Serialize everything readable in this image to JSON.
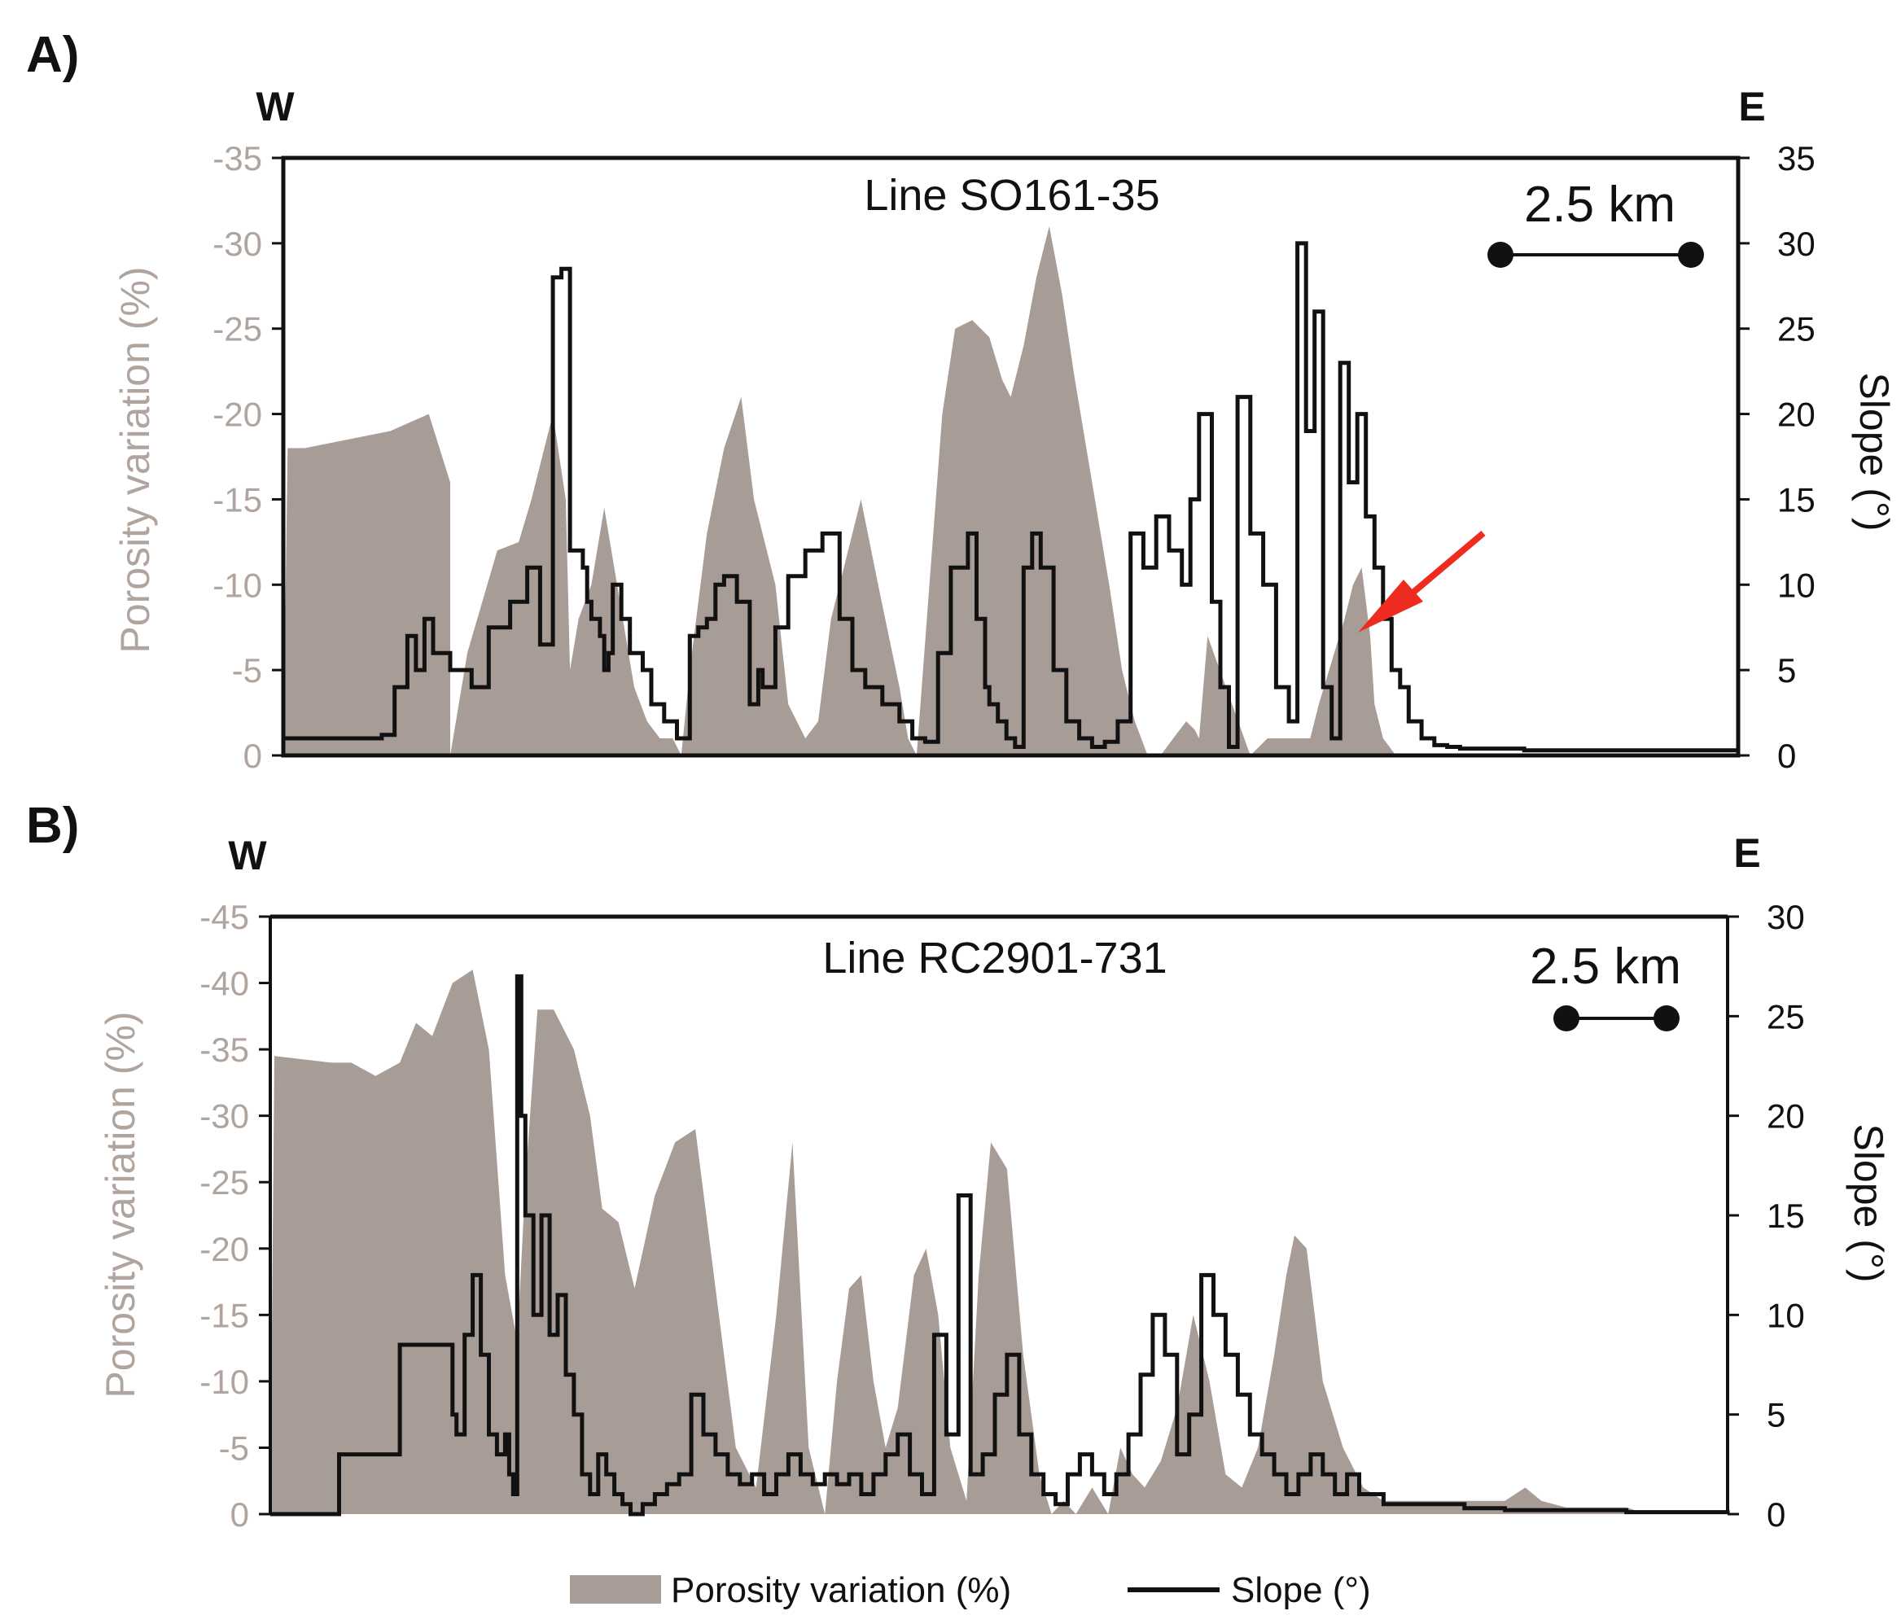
{
  "figure": {
    "colors": {
      "porosity": "#a89c96",
      "slope": "#111111",
      "arrow": "#ee2b1f",
      "axisText": "#b0a49e",
      "ink": "#111111"
    },
    "legend": {
      "porosity_label": "Porosity variation (%)",
      "slope_label": "Slope (°)"
    }
  },
  "chart_data": [
    {
      "panel_label": "A)",
      "type": "area+line",
      "title": "Line SO161-35",
      "west_label": "W",
      "east_label": "E",
      "scale_label": "2.5 km",
      "scale_km": 2.5,
      "x_units": "km",
      "xlim": [
        0,
        34
      ],
      "ylabel_left": "Porosity variation (%)",
      "ylabel_right": "Slope (°)",
      "ylim_left": [
        -35,
        0
      ],
      "ylim_right": [
        0,
        35
      ],
      "yticks_left": [
        "-35",
        "-30",
        "-25",
        "-20",
        "-15",
        "-10",
        "-5",
        "0"
      ],
      "yticks_right": [
        "35",
        "30",
        "25",
        "20",
        "15",
        "10",
        "5",
        "0"
      ],
      "annotation": {
        "type": "arrow",
        "points_to_x_km": 25.2,
        "points_to_slope_deg": 7.5
      },
      "porosity": {
        "x": [
          0,
          0.1,
          0.5,
          1.5,
          2.5,
          3.4,
          3.9,
          3.9,
          4.3,
          5.0,
          5.5,
          5.8,
          6.1,
          6.3,
          6.6,
          6.7,
          6.9,
          7.2,
          7.5,
          7.8,
          8.0,
          8.2,
          8.5,
          8.8,
          9.1,
          9.3,
          9.5,
          9.9,
          10.3,
          10.7,
          11.0,
          11.5,
          11.8,
          12.2,
          12.5,
          12.8,
          13.2,
          13.5,
          13.9,
          14.4,
          14.6,
          14.8,
          15.1,
          15.4,
          15.7,
          16.1,
          16.5,
          16.8,
          17.0,
          17.3,
          17.6,
          17.9,
          18.2,
          18.5,
          18.9,
          19.3,
          19.6,
          19.9,
          20.2,
          20.5,
          20.8,
          21.1,
          21.3,
          21.4,
          21.6,
          22.6,
          23.0,
          24.0,
          24.2,
          24.8,
          25.0,
          25.2,
          25.4,
          25.5,
          25.7,
          26.0,
          34
        ],
        "y": [
          0,
          -18,
          -18,
          -18.5,
          -19,
          -20,
          -16,
          0,
          -6,
          -12,
          -12.5,
          -15,
          -18,
          -20,
          -15,
          -5,
          -8,
          -10,
          -14.5,
          -10,
          -7,
          -4,
          -2,
          -1,
          -1,
          0,
          -5,
          -13,
          -18,
          -21,
          -15,
          -10,
          -3,
          -1,
          -2,
          -8,
          -12,
          -15,
          -10,
          -4,
          -1,
          0,
          -10,
          -20,
          -25,
          -25.5,
          -24.5,
          -22,
          -21,
          -24,
          -28,
          -31,
          -27,
          -22,
          -16,
          -10,
          -5,
          -2,
          0,
          0,
          -1,
          -2,
          -1.5,
          -1,
          -7,
          0,
          -1,
          -1,
          -3,
          -8,
          -10,
          -11,
          -7,
          -3,
          -1,
          0,
          0
        ]
      },
      "slope": {
        "x": [
          0,
          2.3,
          2.6,
          2.9,
          3.1,
          3.3,
          3.5,
          3.7,
          3.9,
          4.4,
          4.8,
          5.3,
          5.7,
          6.0,
          6.3,
          6.5,
          6.7,
          7.0,
          7.1,
          7.2,
          7.4,
          7.5,
          7.6,
          7.7,
          7.9,
          8.1,
          8.4,
          8.6,
          8.9,
          9.2,
          9.5,
          9.7,
          9.9,
          10.1,
          10.3,
          10.6,
          10.9,
          11.1,
          11.2,
          11.5,
          11.8,
          12.2,
          12.6,
          13.0,
          13.3,
          13.6,
          14.0,
          14.4,
          14.7,
          15.0,
          15.3,
          15.6,
          16.0,
          16.2,
          16.4,
          16.5,
          16.7,
          16.9,
          17.1,
          17.3,
          17.5,
          17.7,
          18.0,
          18.3,
          18.6,
          18.9,
          19.2,
          19.5,
          19.8,
          20.1,
          20.4,
          20.7,
          21.0,
          21.2,
          21.4,
          21.7,
          21.9,
          22.1,
          22.3,
          22.6,
          22.9,
          23.2,
          23.5,
          23.7,
          23.9,
          24.1,
          24.3,
          24.5,
          24.7,
          24.9,
          25.1,
          25.3,
          25.5,
          25.7,
          25.9,
          26.1,
          26.3,
          26.6,
          26.9,
          27.2,
          27.5,
          27.8,
          28.1,
          28.4,
          29.0,
          30.0,
          31.0,
          32.0,
          33.0,
          34.0
        ],
        "y": [
          1,
          1.2,
          4,
          7,
          5,
          8,
          6,
          6,
          5,
          4,
          7.5,
          9,
          11,
          6.5,
          28,
          28.5,
          12,
          11,
          9,
          8,
          7,
          5,
          6,
          10,
          8,
          6,
          5,
          3,
          2,
          1,
          7,
          7.5,
          8,
          10,
          10.5,
          9,
          3,
          5,
          4,
          7.5,
          10.5,
          12,
          13,
          8,
          5,
          4,
          3,
          2,
          1,
          0.8,
          6,
          11,
          13,
          8,
          4,
          3,
          2,
          1,
          0.5,
          11,
          13,
          11,
          5,
          2,
          1,
          0.5,
          0.8,
          2,
          13,
          11,
          14,
          12,
          10,
          15,
          20,
          9,
          4,
          0.5,
          21,
          13,
          10,
          4,
          2,
          30,
          19,
          26,
          4,
          1,
          23,
          16,
          20,
          14,
          11,
          8,
          5,
          4,
          2,
          1,
          0.6,
          0.5,
          0.4,
          0.4,
          0.4,
          0.4,
          0.3,
          0.3,
          0.3,
          0.3,
          0.3,
          0.3
        ]
      }
    },
    {
      "panel_label": "B)",
      "type": "area+line",
      "title": "Line RC2901-731",
      "west_label": "W",
      "east_label": "E",
      "scale_label": "2.5 km",
      "scale_km": 2.5,
      "x_units": "km",
      "xlim": [
        0,
        36
      ],
      "ylabel_left": "Porosity variation (%)",
      "ylabel_right": "Slope (°)",
      "ylim_left": [
        -45,
        0
      ],
      "ylim_right": [
        0,
        30
      ],
      "yticks_left": [
        "-45",
        "-40",
        "-35",
        "-30",
        "-25",
        "-20",
        "-15",
        "-10",
        "-5",
        "0"
      ],
      "yticks_right": [
        "30",
        "25",
        "20",
        "15",
        "10",
        "5",
        "0"
      ],
      "porosity": {
        "x": [
          0,
          0.1,
          1.5,
          2.0,
          2.6,
          3.2,
          3.6,
          4.0,
          4.5,
          5.0,
          5.4,
          5.8,
          6.1,
          6.3,
          6.6,
          7.0,
          7.5,
          7.9,
          8.2,
          8.6,
          9.0,
          9.5,
          10.0,
          10.5,
          11.0,
          11.5,
          12.0,
          12.5,
          12.9,
          13.3,
          13.7,
          14.0,
          14.3,
          14.6,
          14.9,
          15.2,
          15.5,
          15.9,
          16.2,
          16.5,
          16.8,
          17.2,
          17.5,
          17.8,
          18.2,
          18.6,
          19.0,
          19.3,
          19.6,
          19.9,
          20.3,
          20.7,
          21.0,
          21.3,
          21.6,
          22.0,
          22.4,
          22.8,
          23.2,
          23.6,
          24.0,
          24.4,
          24.8,
          25.1,
          25.3,
          25.6,
          26.0,
          26.5,
          27.0,
          27.5,
          28.0,
          28.5,
          29.0,
          29.3,
          29.6,
          30.0,
          30.5,
          31.0,
          31.4,
          32.0,
          32.5,
          33.0,
          33.5,
          34.0,
          34.5,
          35.0,
          35.5,
          36.0
        ],
        "y": [
          0,
          -34.5,
          -34,
          -34,
          -33,
          -34,
          -37,
          -36,
          -40,
          -41,
          -35,
          -18,
          -13,
          -25,
          -38,
          -38,
          -35,
          -30,
          -23,
          -22,
          -17,
          -24,
          -28,
          -29,
          -17,
          -5,
          -2,
          -15,
          -28,
          -5,
          0,
          -10,
          -17,
          -18,
          -10,
          -5,
          -8,
          -18,
          -20,
          -15,
          -5,
          -1,
          -18,
          -28,
          -26,
          -12,
          -3,
          0,
          -1,
          0,
          -2,
          0,
          -5,
          -3,
          -2,
          -4,
          -8,
          -15,
          -10,
          -3,
          -2,
          -5,
          -12,
          -18,
          -21,
          -20,
          -10,
          -5,
          -2,
          -1,
          -1,
          -1,
          -1,
          -1,
          -1,
          -1,
          -1,
          -2,
          -1,
          -0.5,
          -0.5,
          -0.5,
          -0.5,
          0,
          0,
          0,
          0,
          0
        ]
      },
      "slope": {
        "x": [
          0,
          1.6,
          1.7,
          2.8,
          3.2,
          4.3,
          4.5,
          4.6,
          4.8,
          5.0,
          5.2,
          5.4,
          5.6,
          5.8,
          5.9,
          6.0,
          6.1,
          6.2,
          6.3,
          6.5,
          6.7,
          6.9,
          7.1,
          7.3,
          7.5,
          7.7,
          7.9,
          8.1,
          8.3,
          8.5,
          8.7,
          8.9,
          9.2,
          9.5,
          9.8,
          10.1,
          10.4,
          10.7,
          11.0,
          11.3,
          11.6,
          11.9,
          12.2,
          12.5,
          12.8,
          13.1,
          13.4,
          13.7,
          14.0,
          14.3,
          14.6,
          14.9,
          15.2,
          15.5,
          15.8,
          16.1,
          16.4,
          16.7,
          17.0,
          17.3,
          17.6,
          17.9,
          18.2,
          18.5,
          18.8,
          19.1,
          19.4,
          19.7,
          20.0,
          20.3,
          20.6,
          20.9,
          21.2,
          21.5,
          21.8,
          22.1,
          22.4,
          22.7,
          23.0,
          23.3,
          23.6,
          23.9,
          24.2,
          24.5,
          24.8,
          25.1,
          25.4,
          25.7,
          26.0,
          26.3,
          26.6,
          26.9,
          27.5,
          28.5,
          29.5,
          30.5,
          31.5,
          32.5,
          33.5,
          34.5,
          35.5,
          36.0
        ],
        "y": [
          0,
          0,
          3,
          3,
          8.5,
          8.5,
          5,
          4,
          9,
          12,
          8,
          4,
          3,
          4,
          2,
          1,
          27,
          20,
          15,
          10,
          15,
          9,
          11,
          7,
          5,
          2,
          1,
          3,
          2,
          1,
          0.5,
          0,
          0.5,
          1,
          1.5,
          2,
          6,
          4,
          3,
          2,
          1.5,
          2,
          1,
          2,
          3,
          2,
          1.5,
          2,
          1.5,
          2,
          1,
          2,
          3,
          4,
          2,
          1,
          9,
          4,
          16,
          2,
          3,
          6,
          8,
          4,
          2,
          1,
          0.5,
          2,
          3,
          2,
          1,
          2,
          4,
          7,
          10,
          8,
          3,
          5,
          12,
          10,
          8,
          6,
          4,
          3,
          2,
          1,
          2,
          3,
          2,
          1,
          2,
          1,
          0.5,
          0.5,
          0.3,
          0.2,
          0.2,
          0.2,
          0.1,
          0.1,
          0.1,
          0
        ]
      }
    }
  ]
}
